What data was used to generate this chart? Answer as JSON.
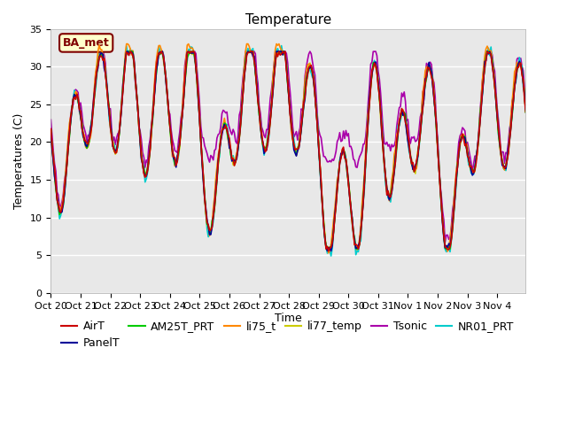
{
  "title": "Temperature",
  "ylabel": "Temperatures (C)",
  "xlabel": "Time",
  "ylim": [
    0,
    35
  ],
  "yticks": [
    0,
    5,
    10,
    15,
    20,
    25,
    30,
    35
  ],
  "xtick_labels": [
    "Oct 20",
    "Oct 21",
    "Oct 22",
    "Oct 23",
    "Oct 24",
    "Oct 25",
    "Oct 26",
    "Oct 27",
    "Oct 28",
    "Oct 29",
    "Oct 30",
    "Oct 31",
    "Nov 1",
    "Nov 2",
    "Nov 3",
    "Nov 4"
  ],
  "annotation_text": "BA_met",
  "annotation_color": "#800000",
  "annotation_bg": "#FFFFCC",
  "colors": {
    "AirT": "#CC0000",
    "PanelT": "#000099",
    "AM25T_PRT": "#00CC00",
    "li75_t": "#FF8800",
    "li77_temp": "#CCCC00",
    "Tsonic": "#AA00AA",
    "NR01_PRT": "#00CCCC"
  },
  "fig_bg": "#FFFFFF",
  "plot_bg": "#E8E8E8",
  "grid_color": "#FFFFFF",
  "title_fontsize": 11,
  "label_fontsize": 9,
  "tick_fontsize": 8,
  "legend_fontsize": 9,
  "linewidth": 1.2
}
